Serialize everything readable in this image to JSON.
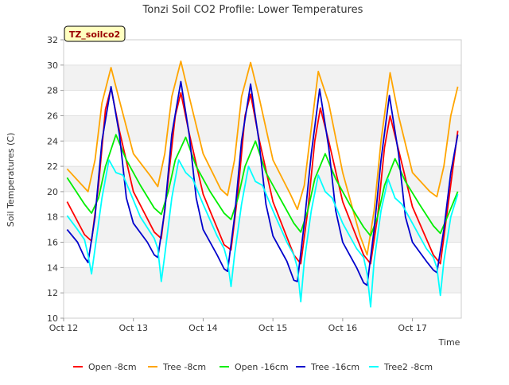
{
  "chart_data": {
    "type": "line",
    "title": "Tonzi Soil CO2 Profile: Lower Temperatures",
    "site_label": "TZ_soilco2",
    "xlabel": "Time",
    "ylabel": "Soil Temperatures (C)",
    "x_tick_labels": [
      "Oct 12",
      "Oct 13",
      "Oct 14",
      "Oct 15",
      "Oct 16",
      "Oct 17"
    ],
    "x_tick_values": [
      0,
      1,
      2,
      3,
      4,
      5
    ],
    "xlim": [
      0,
      5.7
    ],
    "ylim": [
      10,
      32
    ],
    "y_ticks": [
      10,
      12,
      14,
      16,
      18,
      20,
      22,
      24,
      26,
      28,
      30,
      32
    ],
    "grid": "horizontal alternating bands",
    "legend_position": "bottom",
    "series": [
      {
        "name": "Open -8cm",
        "color": "#ff0000",
        "points": [
          [
            0.05,
            19.2
          ],
          [
            0.3,
            16.6
          ],
          [
            0.4,
            16.1
          ],
          [
            0.5,
            20.5
          ],
          [
            0.6,
            26.5
          ],
          [
            0.68,
            28.2
          ],
          [
            0.8,
            24.8
          ],
          [
            1.0,
            20.0
          ],
          [
            1.3,
            16.8
          ],
          [
            1.4,
            16.3
          ],
          [
            1.5,
            21.0
          ],
          [
            1.6,
            26.0
          ],
          [
            1.68,
            27.8
          ],
          [
            1.8,
            24.6
          ],
          [
            2.0,
            19.8
          ],
          [
            2.3,
            15.8
          ],
          [
            2.4,
            15.4
          ],
          [
            2.5,
            20.0
          ],
          [
            2.6,
            26.0
          ],
          [
            2.68,
            27.7
          ],
          [
            2.8,
            24.2
          ],
          [
            3.0,
            19.2
          ],
          [
            3.3,
            15.0
          ],
          [
            3.4,
            14.3
          ],
          [
            3.5,
            18.5
          ],
          [
            3.6,
            24.0
          ],
          [
            3.68,
            26.6
          ],
          [
            3.8,
            24.0
          ],
          [
            4.0,
            19.2
          ],
          [
            4.3,
            15.0
          ],
          [
            4.4,
            14.3
          ],
          [
            4.5,
            18.0
          ],
          [
            4.6,
            23.5
          ],
          [
            4.68,
            26.0
          ],
          [
            4.8,
            23.3
          ],
          [
            5.0,
            18.8
          ],
          [
            5.3,
            15.0
          ],
          [
            5.4,
            14.3
          ],
          [
            5.5,
            18.5
          ],
          [
            5.65,
            24.8
          ]
        ]
      },
      {
        "name": "Tree -8cm",
        "color": "#ffa500",
        "points": [
          [
            0.05,
            21.8
          ],
          [
            0.25,
            20.6
          ],
          [
            0.35,
            20.0
          ],
          [
            0.45,
            22.5
          ],
          [
            0.55,
            27.0
          ],
          [
            0.68,
            29.8
          ],
          [
            0.8,
            27.2
          ],
          [
            1.0,
            23.0
          ],
          [
            1.25,
            21.2
          ],
          [
            1.35,
            20.4
          ],
          [
            1.45,
            23.0
          ],
          [
            1.55,
            27.5
          ],
          [
            1.68,
            30.3
          ],
          [
            1.8,
            27.5
          ],
          [
            2.0,
            23.0
          ],
          [
            2.25,
            20.2
          ],
          [
            2.35,
            19.7
          ],
          [
            2.45,
            22.5
          ],
          [
            2.55,
            27.5
          ],
          [
            2.68,
            30.2
          ],
          [
            2.8,
            27.5
          ],
          [
            3.0,
            22.5
          ],
          [
            3.25,
            19.8
          ],
          [
            3.35,
            18.6
          ],
          [
            3.45,
            20.5
          ],
          [
            3.55,
            25.0
          ],
          [
            3.65,
            29.5
          ],
          [
            3.8,
            27.0
          ],
          [
            4.0,
            21.5
          ],
          [
            4.25,
            16.5
          ],
          [
            4.35,
            15.0
          ],
          [
            4.45,
            18.5
          ],
          [
            4.55,
            24.0
          ],
          [
            4.68,
            29.4
          ],
          [
            4.8,
            26.0
          ],
          [
            5.0,
            21.5
          ],
          [
            5.25,
            20.0
          ],
          [
            5.35,
            19.6
          ],
          [
            5.45,
            22.0
          ],
          [
            5.55,
            26.0
          ],
          [
            5.65,
            28.3
          ]
        ]
      },
      {
        "name": "Open -16cm",
        "color": "#00ee00",
        "points": [
          [
            0.05,
            21.1
          ],
          [
            0.3,
            19.0
          ],
          [
            0.4,
            18.3
          ],
          [
            0.5,
            19.5
          ],
          [
            0.6,
            22.0
          ],
          [
            0.75,
            24.5
          ],
          [
            0.9,
            22.5
          ],
          [
            1.1,
            20.5
          ],
          [
            1.3,
            18.7
          ],
          [
            1.4,
            18.2
          ],
          [
            1.5,
            20.0
          ],
          [
            1.6,
            22.5
          ],
          [
            1.75,
            24.3
          ],
          [
            1.9,
            22.0
          ],
          [
            2.1,
            20.0
          ],
          [
            2.3,
            18.3
          ],
          [
            2.4,
            17.8
          ],
          [
            2.5,
            19.5
          ],
          [
            2.6,
            22.0
          ],
          [
            2.75,
            24.0
          ],
          [
            2.9,
            21.5
          ],
          [
            3.1,
            19.5
          ],
          [
            3.3,
            17.5
          ],
          [
            3.4,
            16.8
          ],
          [
            3.5,
            18.5
          ],
          [
            3.6,
            21.0
          ],
          [
            3.75,
            23.0
          ],
          [
            3.9,
            21.0
          ],
          [
            4.1,
            19.0
          ],
          [
            4.3,
            17.2
          ],
          [
            4.4,
            16.5
          ],
          [
            4.5,
            18.0
          ],
          [
            4.6,
            20.5
          ],
          [
            4.75,
            22.6
          ],
          [
            4.9,
            20.8
          ],
          [
            5.1,
            19.0
          ],
          [
            5.3,
            17.3
          ],
          [
            5.4,
            16.7
          ],
          [
            5.5,
            18.0
          ],
          [
            5.65,
            20.0
          ]
        ]
      },
      {
        "name": "Tree -16cm",
        "color": "#0000cc",
        "points": [
          [
            0.05,
            17.0
          ],
          [
            0.2,
            16.0
          ],
          [
            0.3,
            14.8
          ],
          [
            0.35,
            14.4
          ],
          [
            0.45,
            18.0
          ],
          [
            0.55,
            24.0
          ],
          [
            0.68,
            28.3
          ],
          [
            0.8,
            24.5
          ],
          [
            0.9,
            19.5
          ],
          [
            1.0,
            17.5
          ],
          [
            1.2,
            16.0
          ],
          [
            1.3,
            15.0
          ],
          [
            1.35,
            14.8
          ],
          [
            1.45,
            18.5
          ],
          [
            1.55,
            24.5
          ],
          [
            1.68,
            28.7
          ],
          [
            1.8,
            24.5
          ],
          [
            1.9,
            19.5
          ],
          [
            2.0,
            17.0
          ],
          [
            2.2,
            15.0
          ],
          [
            2.3,
            13.9
          ],
          [
            2.35,
            13.7
          ],
          [
            2.45,
            18.0
          ],
          [
            2.55,
            24.0
          ],
          [
            2.68,
            28.5
          ],
          [
            2.8,
            24.0
          ],
          [
            2.9,
            19.0
          ],
          [
            3.0,
            16.5
          ],
          [
            3.2,
            14.5
          ],
          [
            3.3,
            13.0
          ],
          [
            3.35,
            12.9
          ],
          [
            3.45,
            17.5
          ],
          [
            3.55,
            23.0
          ],
          [
            3.67,
            28.1
          ],
          [
            3.8,
            23.5
          ],
          [
            3.9,
            18.5
          ],
          [
            4.0,
            16.0
          ],
          [
            4.2,
            14.0
          ],
          [
            4.3,
            12.8
          ],
          [
            4.35,
            12.6
          ],
          [
            4.45,
            17.0
          ],
          [
            4.55,
            22.5
          ],
          [
            4.67,
            27.6
          ],
          [
            4.8,
            23.0
          ],
          [
            4.9,
            18.0
          ],
          [
            5.0,
            16.0
          ],
          [
            5.2,
            14.5
          ],
          [
            5.3,
            13.8
          ],
          [
            5.35,
            13.6
          ],
          [
            5.45,
            17.0
          ],
          [
            5.55,
            21.5
          ],
          [
            5.65,
            24.5
          ]
        ]
      },
      {
        "name": "Tree2 -8cm",
        "color": "#00ffff",
        "points": [
          [
            0.05,
            18.1
          ],
          [
            0.2,
            17.0
          ],
          [
            0.3,
            16.2
          ],
          [
            0.35,
            15.0
          ],
          [
            0.4,
            13.5
          ],
          [
            0.45,
            15.5
          ],
          [
            0.55,
            19.5
          ],
          [
            0.65,
            22.5
          ],
          [
            0.75,
            21.5
          ],
          [
            0.85,
            21.3
          ],
          [
            0.95,
            20.0
          ],
          [
            1.1,
            18.0
          ],
          [
            1.3,
            16.3
          ],
          [
            1.35,
            15.5
          ],
          [
            1.4,
            12.9
          ],
          [
            1.45,
            15.0
          ],
          [
            1.55,
            19.5
          ],
          [
            1.65,
            22.5
          ],
          [
            1.75,
            21.5
          ],
          [
            1.85,
            21.0
          ],
          [
            2.0,
            19.0
          ],
          [
            2.2,
            16.5
          ],
          [
            2.3,
            15.5
          ],
          [
            2.35,
            14.5
          ],
          [
            2.4,
            12.5
          ],
          [
            2.45,
            15.0
          ],
          [
            2.55,
            19.0
          ],
          [
            2.65,
            22.0
          ],
          [
            2.75,
            20.8
          ],
          [
            2.85,
            20.5
          ],
          [
            3.0,
            18.5
          ],
          [
            3.2,
            16.0
          ],
          [
            3.3,
            15.0
          ],
          [
            3.35,
            14.0
          ],
          [
            3.4,
            11.3
          ],
          [
            3.45,
            14.5
          ],
          [
            3.55,
            18.5
          ],
          [
            3.65,
            21.3
          ],
          [
            3.75,
            20.0
          ],
          [
            3.85,
            19.5
          ],
          [
            4.0,
            17.5
          ],
          [
            4.2,
            15.5
          ],
          [
            4.3,
            14.8
          ],
          [
            4.35,
            13.5
          ],
          [
            4.4,
            10.9
          ],
          [
            4.45,
            14.5
          ],
          [
            4.55,
            18.5
          ],
          [
            4.65,
            21.0
          ],
          [
            4.75,
            19.5
          ],
          [
            4.85,
            19.0
          ],
          [
            5.0,
            17.5
          ],
          [
            5.2,
            15.5
          ],
          [
            5.3,
            14.8
          ],
          [
            5.35,
            14.0
          ],
          [
            5.4,
            11.8
          ],
          [
            5.45,
            14.5
          ],
          [
            5.55,
            18.0
          ],
          [
            5.65,
            19.8
          ]
        ]
      }
    ]
  }
}
